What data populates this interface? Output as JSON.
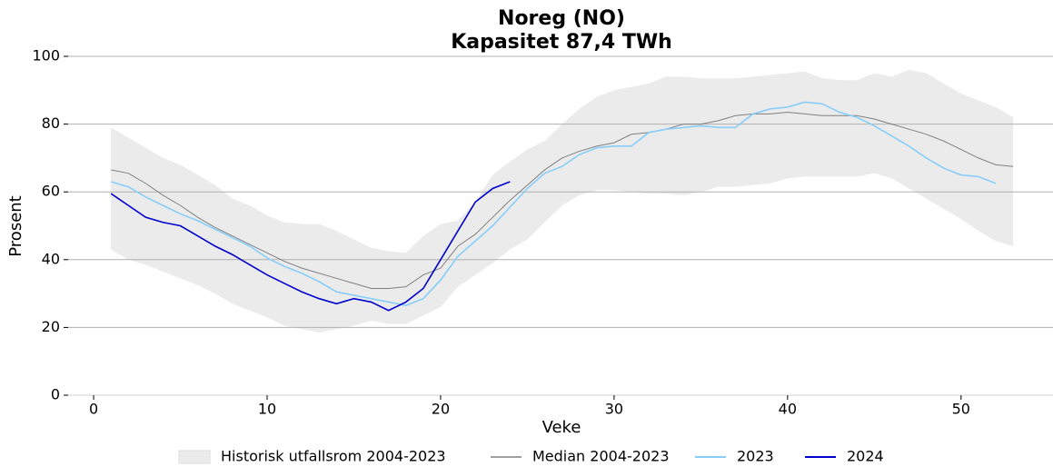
{
  "chart_data": {
    "type": "line",
    "title": "Noreg (NO)",
    "subtitle": "Kapasitet 87,4 TWh",
    "xlabel": "Veke",
    "ylabel": "Prosent",
    "x": [
      1,
      2,
      3,
      4,
      5,
      6,
      7,
      8,
      9,
      10,
      11,
      12,
      13,
      14,
      15,
      16,
      17,
      18,
      19,
      20,
      21,
      22,
      23,
      24,
      25,
      26,
      27,
      28,
      29,
      30,
      31,
      32,
      33,
      34,
      35,
      36,
      37,
      38,
      39,
      40,
      41,
      42,
      43,
      44,
      45,
      46,
      47,
      48,
      49,
      50,
      51,
      52,
      53
    ],
    "band": {
      "name": "Historisk utfallsrom 2004-2023",
      "color": "#ebebeb",
      "high": [
        79,
        76,
        73,
        70,
        68,
        65,
        62,
        58,
        56,
        53,
        51,
        50.5,
        50.5,
        48.5,
        46,
        43.5,
        42.5,
        42,
        47,
        50.5,
        51.5,
        57,
        65,
        69,
        72.5,
        75,
        80,
        84.5,
        88,
        90,
        91,
        92,
        94,
        94,
        93.5,
        93.5,
        93.5,
        94,
        94.5,
        95,
        95.5,
        93.5,
        93,
        93,
        95,
        94,
        96,
        95,
        92,
        89,
        87,
        85,
        82
      ],
      "low": [
        43,
        40,
        38.5,
        36.5,
        34.5,
        32.5,
        30,
        27,
        25,
        23,
        20.5,
        19.5,
        18.5,
        19.5,
        20.5,
        22,
        21,
        21,
        23.5,
        26,
        32,
        35.5,
        39,
        43,
        46,
        51,
        56,
        59,
        60.5,
        60.5,
        60,
        59.5,
        59.5,
        59,
        60,
        61.5,
        61.5,
        62,
        62.5,
        64,
        64.5,
        64.5,
        64.5,
        64.5,
        65.5,
        64,
        61,
        58,
        55,
        52,
        48.5,
        45.5,
        44
      ]
    },
    "series": [
      {
        "name": "Median 2004-2023",
        "color": "#808080",
        "width": 1,
        "values": [
          66.5,
          65.5,
          62.5,
          59,
          56,
          52.5,
          49.5,
          47,
          44.5,
          42,
          39.5,
          37.5,
          36,
          34.5,
          33,
          31.5,
          31.5,
          32,
          35.5,
          37.5,
          44,
          47.5,
          52.5,
          57.5,
          62,
          66.5,
          70,
          72,
          73.5,
          74.5,
          77,
          77.5,
          78.5,
          80,
          80,
          81,
          82.5,
          83,
          83,
          83.5,
          83,
          82.5,
          82.5,
          82.5,
          81.5,
          80,
          78.5,
          77,
          75,
          72.5,
          70,
          68,
          67.5
        ]
      },
      {
        "name": "2023",
        "color": "#87cefa",
        "width": 1.6,
        "values": [
          63,
          61.5,
          58.5,
          56,
          53.5,
          51.5,
          49,
          46.5,
          44,
          40.5,
          38,
          36,
          33.5,
          30.5,
          29.5,
          28.5,
          27.5,
          26.5,
          28.5,
          34,
          41,
          45.5,
          50,
          55.5,
          61,
          65.5,
          67.5,
          71,
          73,
          73.5,
          73.5,
          77.5,
          78.5,
          79,
          79.5,
          79,
          79,
          83,
          84.5,
          85,
          86.5,
          86,
          83.5,
          82,
          79.5,
          76.5,
          73.5,
          70,
          67,
          65,
          64.5,
          62.5,
          null
        ]
      },
      {
        "name": "2024",
        "color": "#0000cd",
        "width": 1.6,
        "values": [
          59.5,
          56,
          52.5,
          51,
          50,
          47,
          44,
          41.5,
          38.5,
          35.5,
          33,
          30.5,
          28.5,
          27,
          28.5,
          27.5,
          25,
          27.5,
          31.5,
          40,
          48.5,
          57,
          61,
          63,
          null,
          null,
          null,
          null,
          null,
          null,
          null,
          null,
          null,
          null,
          null,
          null,
          null,
          null,
          null,
          null,
          null,
          null,
          null,
          null,
          null,
          null,
          null,
          null,
          null,
          null,
          null,
          null,
          null
        ]
      }
    ],
    "xlim": [
      -1.47,
      55.3
    ],
    "ylim": [
      0,
      100
    ],
    "xticks": [
      0,
      10,
      20,
      30,
      40,
      50
    ],
    "yticks": [
      0,
      20,
      40,
      60,
      80,
      100
    ],
    "grid": true
  }
}
